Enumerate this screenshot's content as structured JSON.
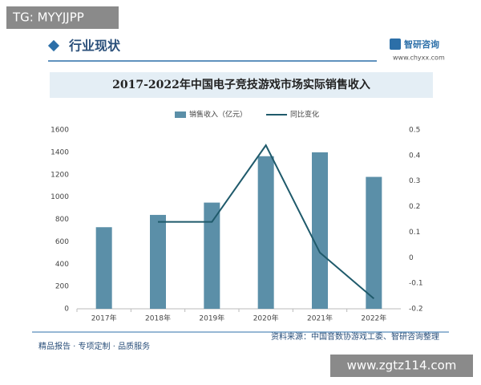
{
  "header": {
    "tag": "TG: MYYJJPP",
    "section": "行业现状",
    "brand": "智研咨询",
    "brand_url": "www.chyxx.com"
  },
  "chart_data": {
    "type": "bar",
    "title": "2017-2022年中国电子竞技游戏市场实际销售收入",
    "categories": [
      "2017年",
      "2018年",
      "2019年",
      "2020年",
      "2021年",
      "2022年"
    ],
    "series": [
      {
        "name": "销售收入（亿元）",
        "type": "bar",
        "color": "#5b8fa8",
        "values": [
          730,
          840,
          950,
          1365,
          1400,
          1180
        ]
      },
      {
        "name": "同比变化",
        "type": "line",
        "axis": "y2",
        "color": "#1f5a6b",
        "values": [
          null,
          0.14,
          0.14,
          0.44,
          0.02,
          -0.16
        ]
      }
    ],
    "ylim": [
      0,
      1600
    ],
    "yticks": [
      0,
      200,
      400,
      600,
      800,
      1000,
      1200,
      1400,
      1600
    ],
    "y2lim": [
      -0.2,
      0.5
    ],
    "y2ticks": [
      -0.2,
      -0.1,
      0,
      0.1,
      0.2,
      0.3,
      0.4,
      0.5
    ],
    "grid": false,
    "legend": "top"
  },
  "footer": {
    "source": "资料来源：中国音数协游戏工委、智研咨询整理",
    "slogan": "精品报告 · 专项定制 · 品质服务",
    "site": "www.zgtz114.com"
  }
}
